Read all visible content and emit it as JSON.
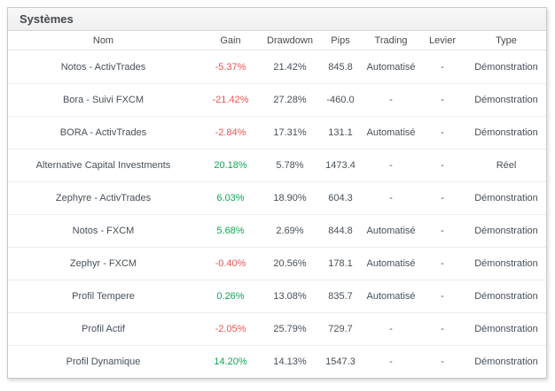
{
  "panel": {
    "title": "Systèmes"
  },
  "table": {
    "columns": [
      {
        "key": "name",
        "label": "Nom"
      },
      {
        "key": "gain",
        "label": "Gain"
      },
      {
        "key": "drawdown",
        "label": "Drawdown"
      },
      {
        "key": "pips",
        "label": "Pips"
      },
      {
        "key": "trading",
        "label": "Trading"
      },
      {
        "key": "levier",
        "label": "Levier"
      },
      {
        "key": "type",
        "label": "Type"
      }
    ],
    "rows": [
      {
        "name": "Notos - ActivTrades",
        "gain": "-5.37%",
        "drawdown": "21.42%",
        "pips": "845.8",
        "trading": "Automatisé",
        "levier": "-",
        "type": "Démonstration"
      },
      {
        "name": "Bora - Suivi FXCM",
        "gain": "-21.42%",
        "drawdown": "27.28%",
        "pips": "-460.0",
        "trading": "-",
        "levier": "-",
        "type": "Démonstration"
      },
      {
        "name": "BORA - ActivTrades",
        "gain": "-2.84%",
        "drawdown": "17.31%",
        "pips": "131.1",
        "trading": "Automatisé",
        "levier": "-",
        "type": "Démonstration"
      },
      {
        "name": "Alternative Capital Investments",
        "gain": "20.18%",
        "drawdown": "5.78%",
        "pips": "1473.4",
        "trading": "-",
        "levier": "-",
        "type": "Réel"
      },
      {
        "name": "Zephyre - ActivTrades",
        "gain": "6.03%",
        "drawdown": "18.90%",
        "pips": "604.3",
        "trading": "-",
        "levier": "-",
        "type": "Démonstration"
      },
      {
        "name": "Notos - FXCM",
        "gain": "5.68%",
        "drawdown": "2.69%",
        "pips": "844.8",
        "trading": "Automatisé",
        "levier": "-",
        "type": "Démonstration"
      },
      {
        "name": "Zephyr - FXCM",
        "gain": "-0.40%",
        "drawdown": "20.56%",
        "pips": "178.1",
        "trading": "Automatisé",
        "levier": "-",
        "type": "Démonstration"
      },
      {
        "name": "Profil Tempere",
        "gain": "0.26%",
        "drawdown": "13.08%",
        "pips": "835.7",
        "trading": "Automatisé",
        "levier": "-",
        "type": "Démonstration"
      },
      {
        "name": "Profil Actif",
        "gain": "-2.05%",
        "drawdown": "25.79%",
        "pips": "729.7",
        "trading": "-",
        "levier": "-",
        "type": "Démonstration"
      },
      {
        "name": "Profil Dynamique",
        "gain": "14.20%",
        "drawdown": "14.13%",
        "pips": "1547.3",
        "trading": "-",
        "levier": "-",
        "type": "Démonstration"
      }
    ]
  },
  "colors": {
    "positive": "#0fa555",
    "negative": "#f15151"
  }
}
